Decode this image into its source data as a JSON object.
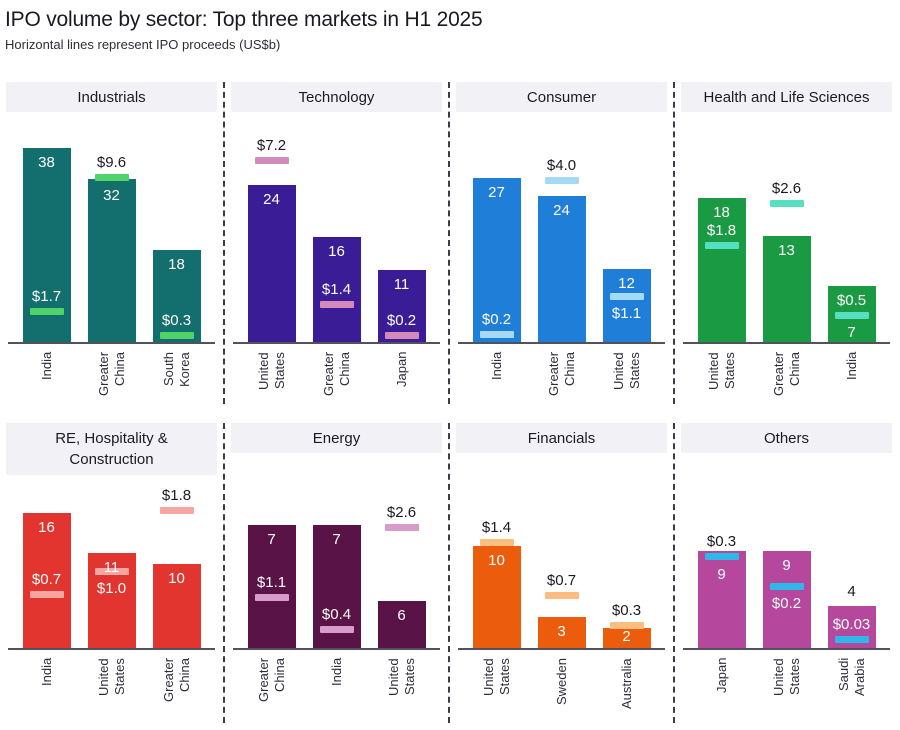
{
  "header": {
    "title": "IPO volume by sector: Top three markets in H1 2025",
    "subtitle": "Horizontal lines represent IPO proceeds (US$b)"
  },
  "colors": {
    "text_dark": "#1a1a24",
    "label_light": "#ffffff",
    "band_background": "#f2f2f6",
    "axis_line": "#52525c",
    "panel_separator": "#3c3c46"
  },
  "chart_data": {
    "type": "bar",
    "title": "IPO volume by sector: Top three markets in H1 2025",
    "subtitle": "Horizontal lines represent IPO proceeds (US$b)",
    "layout": {
      "rows": 2,
      "cols": 4,
      "grid": "small-multiples",
      "separators": "dashed-vertical"
    },
    "value_semantics": {
      "bar": "IPO volume (deal count)",
      "marker": "IPO proceeds (US$b)"
    },
    "panels": [
      {
        "sector": "Industrials",
        "title_lines": [
          "Industrials"
        ],
        "row": 1,
        "bar_color": "#126f6d",
        "marker_color": "#4fd369",
        "bars": [
          {
            "market": "India",
            "label_lines": [
              "India"
            ],
            "volume": 38,
            "proceeds": 1.7,
            "proceeds_label": "$1.7",
            "bar_frac": 0.924,
            "marker_frac": 0.148,
            "vol_pos": "top",
            "plabel_pos": "above",
            "plabel_dark": false
          },
          {
            "market": "Greater China",
            "label_lines": [
              "Greater",
              "China"
            ],
            "volume": 32,
            "proceeds": 9.6,
            "proceeds_label": "$9.6",
            "bar_frac": 0.776,
            "marker_frac": 0.786,
            "vol_pos": "top",
            "plabel_pos": "above",
            "plabel_dark": true
          },
          {
            "market": "South Korea",
            "label_lines": [
              "South",
              "Korea"
            ],
            "volume": 18,
            "proceeds": 0.3,
            "proceeds_label": "$0.3",
            "bar_frac": 0.438,
            "marker_frac": 0.033,
            "vol_pos": "top",
            "plabel_pos": "above",
            "plabel_dark": false
          }
        ]
      },
      {
        "sector": "Technology",
        "title_lines": [
          "Technology"
        ],
        "row": 1,
        "bar_color": "#3a1d96",
        "marker_color": "#d389b9",
        "bars": [
          {
            "market": "United States",
            "label_lines": [
              "United",
              "States"
            ],
            "volume": 24,
            "proceeds": 7.2,
            "proceeds_label": "$7.2",
            "bar_frac": 0.748,
            "marker_frac": 0.867,
            "vol_pos": "top",
            "plabel_pos": "above",
            "plabel_dark": true
          },
          {
            "market": "Greater China",
            "label_lines": [
              "Greater",
              "China"
            ],
            "volume": 16,
            "proceeds": 1.4,
            "proceeds_label": "$1.4",
            "bar_frac": 0.5,
            "marker_frac": 0.181,
            "vol_pos": "top",
            "plabel_pos": "above",
            "plabel_dark": false
          },
          {
            "market": "Japan",
            "label_lines": [
              "Japan"
            ],
            "volume": 11,
            "proceeds": 0.2,
            "proceeds_label": "$0.2",
            "bar_frac": 0.343,
            "marker_frac": 0.033,
            "vol_pos": "top",
            "plabel_pos": "above",
            "plabel_dark": false
          }
        ]
      },
      {
        "sector": "Consumer",
        "title_lines": [
          "Consumer"
        ],
        "row": 1,
        "bar_color": "#1f7fd8",
        "marker_color": "#a5daf5",
        "bars": [
          {
            "market": "India",
            "label_lines": [
              "India"
            ],
            "volume": 27,
            "proceeds": 0.2,
            "proceeds_label": "$0.2",
            "bar_frac": 0.781,
            "marker_frac": 0.038,
            "vol_pos": "top",
            "plabel_pos": "above",
            "plabel_dark": false
          },
          {
            "market": "Greater China",
            "label_lines": [
              "Greater",
              "China"
            ],
            "volume": 24,
            "proceeds": 4.0,
            "proceeds_label": "$4.0",
            "bar_frac": 0.695,
            "marker_frac": 0.771,
            "vol_pos": "top",
            "plabel_pos": "above",
            "plabel_dark": true
          },
          {
            "market": "United States",
            "label_lines": [
              "United",
              "States"
            ],
            "volume": 12,
            "proceeds": 1.1,
            "proceeds_label": "$1.1",
            "bar_frac": 0.348,
            "marker_frac": 0.219,
            "vol_pos": "top",
            "plabel_pos": "below",
            "plabel_dark": false
          }
        ]
      },
      {
        "sector": "Health and Life Sciences",
        "title_lines": [
          "Health and Life Sciences"
        ],
        "row": 1,
        "bar_color": "#1b9a44",
        "marker_color": "#55e0c2",
        "bars": [
          {
            "market": "United States",
            "label_lines": [
              "United",
              "States"
            ],
            "volume": 18,
            "proceeds": 1.8,
            "proceeds_label": "$1.8",
            "bar_frac": 0.686,
            "marker_frac": 0.462,
            "vol_pos": "top",
            "plabel_pos": "above",
            "plabel_dark": false
          },
          {
            "market": "Greater China",
            "label_lines": [
              "Greater",
              "China"
            ],
            "volume": 13,
            "proceeds": 2.6,
            "proceeds_label": "$2.6",
            "bar_frac": 0.505,
            "marker_frac": 0.662,
            "vol_pos": "top",
            "plabel_pos": "above",
            "plabel_dark": true
          },
          {
            "market": "India",
            "label_lines": [
              "India"
            ],
            "volume": 7,
            "proceeds": 0.5,
            "proceeds_label": "$0.5",
            "bar_frac": 0.267,
            "marker_frac": 0.129,
            "vol_pos": "belowm",
            "plabel_pos": "above",
            "plabel_dark": false
          }
        ]
      },
      {
        "sector": "RE, Hospitality & Construction",
        "title_lines": [
          "RE, Hospitality &",
          "Construction"
        ],
        "row": 2,
        "bar_color": "#e3352f",
        "marker_color": "#f6a6a1",
        "bars": [
          {
            "market": "India",
            "label_lines": [
              "India"
            ],
            "volume": 16,
            "proceeds": 0.7,
            "proceeds_label": "$0.7",
            "bar_frac": 0.794,
            "marker_frac": 0.318,
            "vol_pos": "top",
            "plabel_pos": "above",
            "plabel_dark": false
          },
          {
            "market": "United States",
            "label_lines": [
              "United",
              "States"
            ],
            "volume": 11,
            "proceeds": 1.0,
            "proceeds_label": "$1.0",
            "bar_frac": 0.559,
            "marker_frac": 0.453,
            "vol_pos": "top",
            "plabel_pos": "below",
            "plabel_dark": false
          },
          {
            "market": "Greater China",
            "label_lines": [
              "Greater",
              "China"
            ],
            "volume": 10,
            "proceeds": 1.8,
            "proceeds_label": "$1.8",
            "bar_frac": 0.494,
            "marker_frac": 0.812,
            "vol_pos": "top",
            "plabel_pos": "above",
            "plabel_dark": true
          }
        ]
      },
      {
        "sector": "Energy",
        "title_lines": [
          "Energy"
        ],
        "row": 2,
        "bar_color": "#5a1346",
        "marker_color": "#d79cc9",
        "bars": [
          {
            "market": "Greater China",
            "label_lines": [
              "Greater",
              "China"
            ],
            "volume": 7,
            "proceeds": 1.1,
            "proceeds_label": "$1.1",
            "bar_frac": 0.724,
            "marker_frac": 0.3,
            "vol_pos": "top",
            "plabel_pos": "above",
            "plabel_dark": false
          },
          {
            "market": "India",
            "label_lines": [
              "India"
            ],
            "volume": 7,
            "proceeds": 0.4,
            "proceeds_label": "$0.4",
            "bar_frac": 0.724,
            "marker_frac": 0.112,
            "vol_pos": "top",
            "plabel_pos": "above",
            "plabel_dark": false
          },
          {
            "market": "United States",
            "label_lines": [
              "United",
              "States"
            ],
            "volume": 6,
            "proceeds": 2.6,
            "proceeds_label": "$2.6",
            "bar_frac": 0.276,
            "marker_frac": 0.712,
            "vol_pos": "top",
            "plabel_pos": "above",
            "plabel_dark": true
          }
        ]
      },
      {
        "sector": "Financials",
        "title_lines": [
          "Financials"
        ],
        "row": 2,
        "bar_color": "#eb5c0d",
        "marker_color": "#fcbd80",
        "bars": [
          {
            "market": "United States",
            "label_lines": [
              "United",
              "States"
            ],
            "volume": 10,
            "proceeds": 1.4,
            "proceeds_label": "$1.4",
            "bar_frac": 0.6,
            "marker_frac": 0.624,
            "vol_pos": "top",
            "plabel_pos": "above",
            "plabel_dark": true
          },
          {
            "market": "Sweden",
            "label_lines": [
              "Sweden"
            ],
            "volume": 3,
            "proceeds": 0.7,
            "proceeds_label": "$0.7",
            "bar_frac": 0.182,
            "marker_frac": 0.312,
            "vol_pos": "top",
            "plabel_pos": "above",
            "plabel_dark": true
          },
          {
            "market": "Australia",
            "label_lines": [
              "Australia"
            ],
            "volume": 2,
            "proceeds": 0.3,
            "proceeds_label": "$0.3",
            "bar_frac": 0.118,
            "marker_frac": 0.135,
            "vol_pos": "top",
            "plabel_pos": "above",
            "plabel_dark": true
          }
        ]
      },
      {
        "sector": "Others",
        "title_lines": [
          "Others"
        ],
        "row": 2,
        "bar_color": "#b5479c",
        "marker_color": "#2fb7e8",
        "bars": [
          {
            "market": "Japan",
            "label_lines": [
              "Japan"
            ],
            "volume": 9,
            "proceeds": 0.3,
            "proceeds_label": "$0.3",
            "bar_frac": 0.571,
            "marker_frac": 0.541,
            "vol_pos": "top",
            "plabel_pos": "above",
            "plabel_dark": true
          },
          {
            "market": "United States",
            "label_lines": [
              "United",
              "States"
            ],
            "volume": 9,
            "proceeds": 0.2,
            "proceeds_label": "$0.2",
            "bar_frac": 0.571,
            "marker_frac": 0.365,
            "vol_pos": "top",
            "plabel_pos": "below",
            "plabel_dark": false
          },
          {
            "market": "Saudi Arabia",
            "label_lines": [
              "Saudi",
              "Arabia"
            ],
            "volume": 4,
            "proceeds": 0.03,
            "proceeds_label": "$0.03",
            "bar_frac": 0.247,
            "marker_frac": 0.053,
            "vol_pos": "above",
            "plabel_pos": "above",
            "plabel_dark": false
          }
        ]
      }
    ]
  }
}
